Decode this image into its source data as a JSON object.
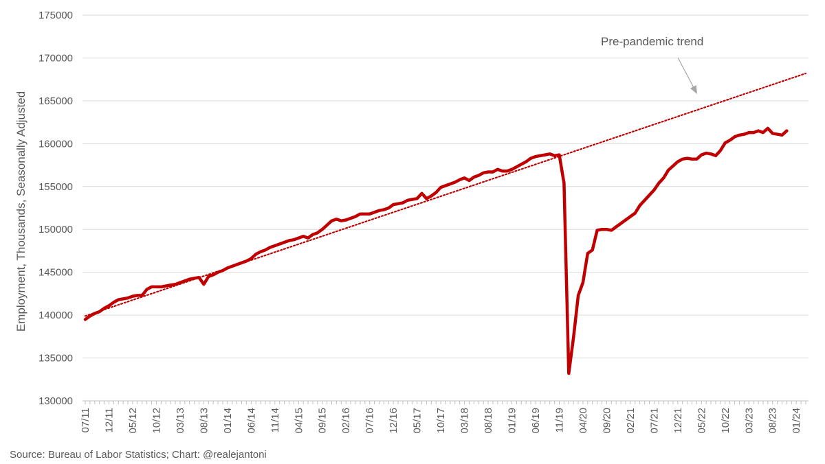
{
  "colors": {
    "employment": "#c00000",
    "trend": "#c00000",
    "grid": "#d9d9d9",
    "arrow": "#a6a6a6"
  },
  "source": "Source: Bureau of Labor Statistics; Chart: @realejantoni",
  "chart_data": {
    "type": "line",
    "title": "",
    "ylabel": "Employment, Thousands, Seasonally Adjusted",
    "xlabel": "",
    "ylim": [
      130000,
      175000
    ],
    "yticks": [
      130000,
      135000,
      140000,
      145000,
      150000,
      155000,
      160000,
      165000,
      170000,
      175000
    ],
    "grid": true,
    "x_start": "07/11",
    "x_end": "03/24",
    "x_tick_labels": [
      "07/11",
      "12/11",
      "05/12",
      "10/12",
      "03/13",
      "08/13",
      "01/14",
      "06/14",
      "11/14",
      "04/15",
      "09/15",
      "02/16",
      "07/16",
      "12/16",
      "05/17",
      "10/17",
      "03/18",
      "08/18",
      "01/19",
      "06/19",
      "11/19",
      "04/20",
      "09/20",
      "02/21",
      "07/21",
      "12/21",
      "05/22",
      "10/22",
      "03/23",
      "08/23",
      "01/24"
    ],
    "annotation": "Pre-pandemic trend",
    "series": [
      {
        "style": "solid",
        "values": [
          139500,
          139900,
          140200,
          140400,
          140800,
          141100,
          141500,
          141800,
          141900,
          142000,
          142200,
          142300,
          142300,
          143000,
          143300,
          143300,
          143300,
          143400,
          143500,
          143600,
          143800,
          144000,
          144200,
          144300,
          144400,
          143600,
          144500,
          144700,
          145000,
          145200,
          145500,
          145700,
          145900,
          146100,
          146300,
          146600,
          147100,
          147400,
          147600,
          147900,
          148100,
          148300,
          148500,
          148700,
          148800,
          149000,
          149200,
          149000,
          149400,
          149600,
          150000,
          150500,
          151000,
          151200,
          151000,
          151100,
          151300,
          151500,
          151800,
          151800,
          151800,
          152000,
          152200,
          152300,
          152500,
          152900,
          153000,
          153100,
          153400,
          153500,
          153600,
          154200,
          153600,
          153900,
          154300,
          154900,
          155100,
          155300,
          155500,
          155800,
          156000,
          155700,
          156100,
          156300,
          156600,
          156700,
          156700,
          157000,
          156800,
          156800,
          157000,
          157300,
          157600,
          157900,
          158300,
          158500,
          158600,
          158700,
          158800,
          158600,
          158700,
          155400,
          133200,
          137400,
          142300,
          143800,
          147200,
          147600,
          149900,
          150000,
          150000,
          149900,
          150300,
          150700,
          151100,
          151500,
          151900,
          152800,
          153400,
          154000,
          154600,
          155400,
          156000,
          156900,
          157400,
          157900,
          158200,
          158300,
          158200,
          158200,
          158700,
          158900,
          158800,
          158600,
          159200,
          160100,
          160400,
          160800,
          161000,
          161100,
          161300,
          161300,
          161500,
          161300,
          161800,
          161200,
          161100,
          161000,
          161500
        ]
      },
      {
        "style": "dotted",
        "x": [
          "07/11",
          "03/24"
        ],
        "values": [
          139900,
          168200
        ]
      }
    ]
  }
}
